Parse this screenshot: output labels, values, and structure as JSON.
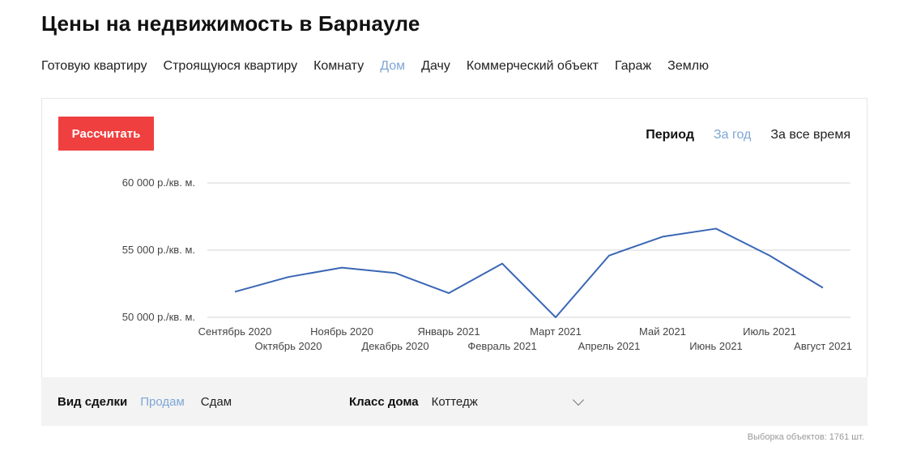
{
  "title": "Цены на недвижимость в Барнауле",
  "nav": {
    "tabs": [
      "Готовую квартиру",
      "Строящуюся квартиру",
      "Комнату",
      "Дом",
      "Дачу",
      "Коммерческий объект",
      "Гараж",
      "Землю"
    ],
    "active": "Дом"
  },
  "calculate_label": "Рассчитать",
  "period": {
    "label": "Период",
    "options": [
      "За год",
      "За все время"
    ],
    "active": "За год"
  },
  "chart_data": {
    "type": "line",
    "categories": [
      "Сентябрь 2020",
      "Октябрь 2020",
      "Ноябрь 2020",
      "Декабрь 2020",
      "Январь 2021",
      "Февраль 2021",
      "Март 2021",
      "Апрель 2021",
      "Май 2021",
      "Июнь 2021",
      "Июль 2021",
      "Август 2021"
    ],
    "series": [
      {
        "values": [
          51900,
          53000,
          53700,
          53300,
          51800,
          54000,
          50000,
          54600,
          56000,
          56600,
          54600,
          52200
        ]
      }
    ],
    "y_ticks": [
      "50 000 р./кв. м.",
      "55 000 р./кв. м.",
      "60 000 р./кв. м."
    ],
    "y_tick_values": [
      50000,
      55000,
      60000
    ],
    "ylim": [
      50000,
      60000
    ],
    "grid": true,
    "line_color": "#3a66b5"
  },
  "filters": {
    "deal_label": "Вид сделки",
    "deal_options": [
      "Продам",
      "Сдам"
    ],
    "deal_active": "Продам",
    "house_class_label": "Класс дома",
    "house_class_value": "Коттедж"
  },
  "sample_text": "Выборка объектов: 1761 шт."
}
